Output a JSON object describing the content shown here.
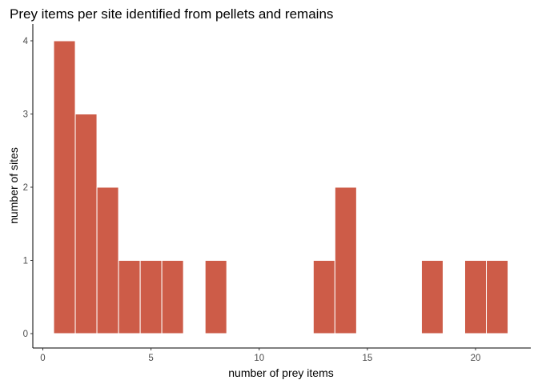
{
  "chart_data": {
    "type": "bar",
    "title": "Prey items per site identified from pellets and remains",
    "xlabel": "number of prey items",
    "ylabel": "number of sites",
    "xlim": [
      0,
      22
    ],
    "ylim": [
      0,
      4
    ],
    "x_ticks": [
      0,
      5,
      10,
      15,
      20
    ],
    "y_ticks": [
      0,
      1,
      2,
      3,
      4
    ],
    "bin_width": 1,
    "x": [
      1,
      2,
      3,
      4,
      5,
      6,
      7,
      8,
      9,
      10,
      11,
      12,
      13,
      14,
      15,
      16,
      17,
      18,
      19,
      20,
      21
    ],
    "values": [
      4,
      3,
      2,
      1,
      1,
      1,
      0,
      1,
      0,
      0,
      0,
      0,
      1,
      2,
      0,
      0,
      0,
      1,
      0,
      1,
      1
    ],
    "grid": false,
    "legend": "none",
    "colors": {
      "bar_fill": "#cd5c48",
      "bar_edge": "#ffffff",
      "axis": "#000000",
      "tick_text": "#4d4d4d"
    }
  }
}
